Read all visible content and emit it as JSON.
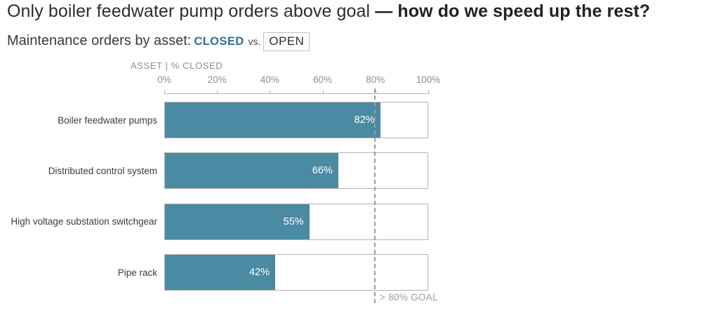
{
  "title": {
    "regular": "Only boiler feedwater pump orders above goal ",
    "bold": "— how do we speed up the rest?"
  },
  "subtitle": {
    "prefix": "Maintenance orders by asset:",
    "closed_label": "CLOSED",
    "vs": "vs.",
    "open_label": "OPEN"
  },
  "chart_data": {
    "type": "bar",
    "orientation": "horizontal",
    "axis_header": "ASSET | % CLOSED",
    "categories": [
      "Boiler feedwater pumps",
      "Distributed control system",
      "High voltage substation switchgear",
      "Pipe rack"
    ],
    "values": [
      82,
      66,
      55,
      42
    ],
    "value_labels": [
      "82%",
      "66%",
      "55%",
      "42%"
    ],
    "x_ticks": [
      "0%",
      "20%",
      "40%",
      "60%",
      "80%",
      "100%"
    ],
    "xlim": [
      0,
      100
    ],
    "grid": false,
    "goal": {
      "value": 80,
      "label": "> 80% GOAL"
    },
    "colors": {
      "closed_fill": "#4a8aa2",
      "closed_text": "#2e7191",
      "bar_border": "#b3b3b3",
      "goal_line": "#9b9b9b",
      "value_text": "#ffffff"
    }
  }
}
